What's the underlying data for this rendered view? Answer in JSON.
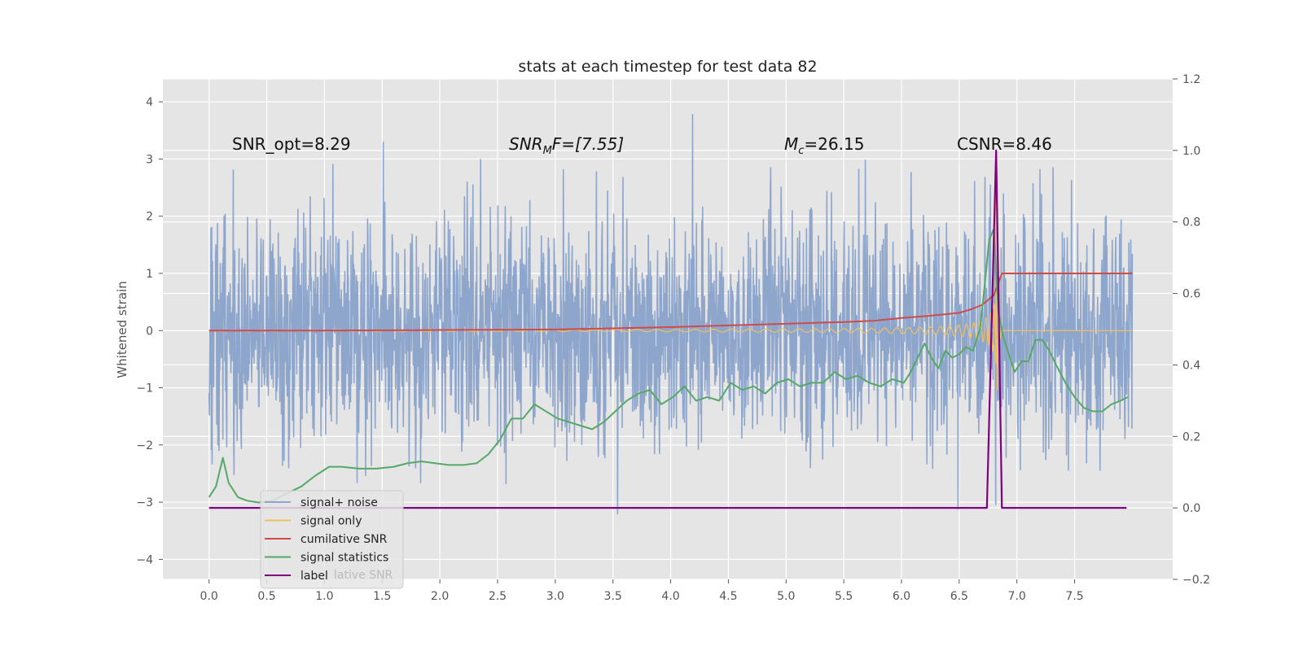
{
  "chart_data": {
    "type": "line",
    "title": "stats at each timestep for test data 82",
    "xlabel": "",
    "ylabel": "Whitened strain",
    "xlim": [
      -0.4,
      8.35
    ],
    "ylim": [
      -4.35,
      4.4
    ],
    "y2lim": [
      -0.2,
      1.2
    ],
    "xticks": [
      "0.0",
      "0.5",
      "1.0",
      "1.5",
      "2.0",
      "2.5",
      "3.0",
      "3.5",
      "4.0",
      "4.5",
      "5.0",
      "5.5",
      "6.0",
      "6.5",
      "7.0",
      "7.5"
    ],
    "yticks": [
      "4",
      "3",
      "2",
      "1",
      "0",
      "−1",
      "−2",
      "−3",
      "−4"
    ],
    "y2ticks": [
      "1.2",
      "1.0",
      "0.8",
      "0.6",
      "0.4",
      "0.2",
      "0.0",
      "−0.2"
    ],
    "grid": true,
    "legend_position": "lower-left",
    "annotations": {
      "snr_opt": "SNR_opt=8.29",
      "snr_mf_sym": "SNR",
      "snr_mf_sub": "M",
      "snr_mf_rest": "F=[7.55]",
      "mc_sym": "M",
      "mc_sub": "c",
      "mc_rest": "=26.15",
      "csnr": "CSNR=8.46"
    },
    "legend_extra_text": "lative SNR",
    "series": [
      {
        "name": "signal+ noise",
        "color": "#8fa6cc",
        "axis": "left",
        "x_range": [
          0.0,
          8.0
        ],
        "noise_sigma": 1.0
      },
      {
        "name": "signal only",
        "color": "#f0c060",
        "axis": "left",
        "x_range": [
          0.0,
          8.0
        ],
        "merger_time": 6.82
      },
      {
        "name": "cumilative SNR",
        "color": "#cc4c4c",
        "axis": "left",
        "x": [
          0.0,
          1.0,
          2.0,
          3.0,
          3.5,
          4.0,
          4.5,
          5.0,
          5.5,
          5.75,
          6.0,
          6.25,
          6.5,
          6.6,
          6.7,
          6.8,
          6.87,
          7.0,
          7.5,
          8.0
        ],
        "y": [
          0.0,
          0.0,
          0.01,
          0.02,
          0.04,
          0.06,
          0.09,
          0.12,
          0.15,
          0.17,
          0.22,
          0.26,
          0.31,
          0.37,
          0.45,
          0.62,
          1.0,
          1.0,
          1.0,
          1.0
        ]
      },
      {
        "name": "signal statistics",
        "color": "#55a868",
        "axis": "right",
        "x": [
          0.0,
          0.06,
          0.12,
          0.17,
          0.25,
          0.33,
          0.43,
          0.55,
          0.67,
          0.8,
          0.92,
          1.04,
          1.15,
          1.3,
          1.45,
          1.6,
          1.72,
          1.84,
          1.96,
          2.08,
          2.2,
          2.32,
          2.42,
          2.52,
          2.62,
          2.72,
          2.82,
          2.92,
          3.02,
          3.12,
          3.22,
          3.32,
          3.42,
          3.52,
          3.62,
          3.72,
          3.82,
          3.92,
          4.02,
          4.12,
          4.22,
          4.32,
          4.42,
          4.52,
          4.62,
          4.72,
          4.82,
          4.92,
          5.02,
          5.12,
          5.22,
          5.32,
          5.42,
          5.52,
          5.62,
          5.72,
          5.82,
          5.92,
          6.02,
          6.08,
          6.14,
          6.2,
          6.26,
          6.32,
          6.38,
          6.44,
          6.5,
          6.56,
          6.62,
          6.68,
          6.72,
          6.76,
          6.8,
          6.84,
          6.88,
          6.92,
          6.98,
          7.04,
          7.1,
          7.16,
          7.22,
          7.28,
          7.34,
          7.42,
          7.5,
          7.58,
          7.66,
          7.74,
          7.82,
          7.9,
          7.96
        ],
        "y": [
          0.03,
          0.06,
          0.14,
          0.07,
          0.03,
          0.02,
          0.015,
          0.02,
          0.04,
          0.06,
          0.09,
          0.115,
          0.115,
          0.11,
          0.11,
          0.115,
          0.125,
          0.13,
          0.125,
          0.12,
          0.12,
          0.125,
          0.15,
          0.19,
          0.25,
          0.25,
          0.29,
          0.27,
          0.25,
          0.24,
          0.23,
          0.22,
          0.24,
          0.27,
          0.3,
          0.32,
          0.33,
          0.29,
          0.31,
          0.34,
          0.3,
          0.31,
          0.3,
          0.35,
          0.33,
          0.34,
          0.32,
          0.35,
          0.36,
          0.34,
          0.35,
          0.35,
          0.38,
          0.36,
          0.37,
          0.35,
          0.34,
          0.36,
          0.35,
          0.38,
          0.42,
          0.46,
          0.42,
          0.39,
          0.44,
          0.42,
          0.43,
          0.45,
          0.44,
          0.5,
          0.62,
          0.75,
          0.78,
          0.55,
          0.48,
          0.44,
          0.38,
          0.41,
          0.41,
          0.47,
          0.47,
          0.44,
          0.4,
          0.35,
          0.31,
          0.28,
          0.27,
          0.27,
          0.29,
          0.3,
          0.31
        ]
      },
      {
        "name": "label",
        "color": "#800080",
        "axis": "right",
        "x": [
          0.0,
          6.74,
          6.82,
          6.87,
          7.95
        ],
        "y": [
          0.0,
          0.0,
          1.0,
          0.0,
          0.0
        ]
      }
    ]
  }
}
